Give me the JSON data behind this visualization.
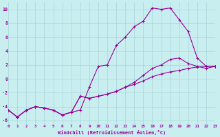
{
  "xlabel": "Windchill (Refroidissement éolien,°C)",
  "bg_color": "#c8eef0",
  "line_color": "#990099",
  "grid_color": "#aad4d8",
  "xlim": [
    0,
    23
  ],
  "ylim": [
    -6.5,
    11
  ],
  "xticks": [
    0,
    1,
    2,
    3,
    4,
    5,
    6,
    7,
    8,
    9,
    10,
    11,
    12,
    13,
    14,
    15,
    16,
    17,
    18,
    19,
    20,
    21,
    22,
    23
  ],
  "yticks": [
    -6,
    -4,
    -2,
    0,
    2,
    4,
    6,
    8,
    10
  ],
  "line1_x": [
    0,
    1,
    2,
    3,
    4,
    5,
    6,
    7,
    8,
    9,
    10,
    11,
    12,
    13,
    14,
    15,
    16,
    17,
    18,
    19,
    20,
    21,
    22,
    23
  ],
  "line1_y": [
    -4.5,
    -5.5,
    -4.5,
    -4.0,
    -4.2,
    -4.5,
    -5.2,
    -4.8,
    -4.5,
    -1.2,
    1.8,
    2.0,
    4.8,
    6.0,
    7.5,
    8.3,
    10.2,
    10.0,
    10.2,
    8.5,
    6.8,
    3.0,
    1.8,
    1.8
  ],
  "line2_x": [
    0,
    1,
    2,
    3,
    4,
    5,
    6,
    7,
    8,
    9,
    10,
    11,
    12,
    13,
    14,
    15,
    16,
    17,
    18,
    19,
    20,
    21,
    22,
    23
  ],
  "line2_y": [
    -4.5,
    -5.5,
    -4.5,
    -4.0,
    -4.2,
    -4.5,
    -5.2,
    -4.8,
    -2.5,
    -2.8,
    -2.5,
    -2.2,
    -1.8,
    -1.2,
    -0.8,
    -0.3,
    0.3,
    0.7,
    1.0,
    1.2,
    1.5,
    1.7,
    1.8,
    1.8
  ],
  "line3_x": [
    0,
    1,
    2,
    3,
    4,
    5,
    6,
    7,
    8,
    9,
    10,
    11,
    12,
    13,
    14,
    15,
    16,
    17,
    18,
    19,
    20,
    21,
    22,
    23
  ],
  "line3_y": [
    -4.5,
    -5.5,
    -4.5,
    -4.0,
    -4.2,
    -4.5,
    -5.2,
    -4.8,
    -2.5,
    -2.8,
    -2.5,
    -2.2,
    -1.8,
    -1.2,
    -0.5,
    0.5,
    1.5,
    2.0,
    2.8,
    3.0,
    2.2,
    1.8,
    1.5,
    1.8
  ]
}
